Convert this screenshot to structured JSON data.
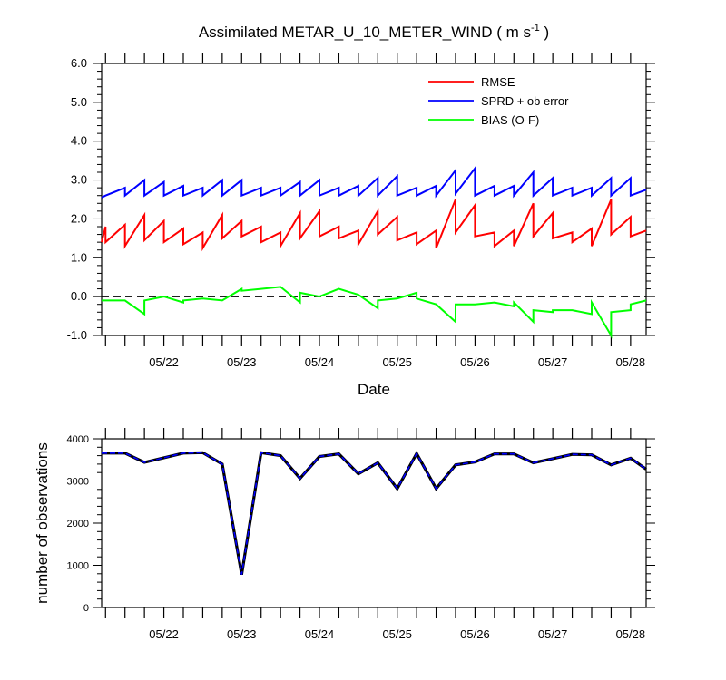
{
  "chart_data": [
    {
      "type": "line",
      "title_main": "Assimilated METAR_U_10_METER_WIND ( m s",
      "title_sup": "-1",
      "title_tail": " )",
      "xlabel": "Date",
      "ylabel": "",
      "xlim": [
        21.2,
        28.2
      ],
      "ylim": [
        -1.0,
        6.0
      ],
      "x_tick_labels": [
        "05/22",
        "05/23",
        "05/24",
        "05/25",
        "05/26",
        "05/27",
        "05/28"
      ],
      "x_tick_values": [
        22,
        23,
        24,
        25,
        26,
        27,
        28
      ],
      "y_tick_labels": [
        "6.0",
        "5.0",
        "4.0",
        "3.0",
        "2.0",
        "1.0",
        "0.0",
        "-1.0"
      ],
      "y_tick_values": [
        6,
        5,
        4,
        3,
        2,
        1,
        0,
        -1
      ],
      "zero_line": true,
      "legend_position": "top-right",
      "series": [
        {
          "name": "RMSE",
          "color": "#ff0000",
          "cycles": [
            {
              "start": 21.2,
              "end": 21.25,
              "v0": 1.4,
              "v1": 1.8
            },
            {
              "start": 21.25,
              "end": 21.5,
              "v0": 1.4,
              "v1": 1.85
            },
            {
              "start": 21.5,
              "end": 21.75,
              "v0": 1.3,
              "v1": 2.1
            },
            {
              "start": 21.75,
              "end": 22.0,
              "v0": 1.45,
              "v1": 1.95
            },
            {
              "start": 22.0,
              "end": 22.25,
              "v0": 1.4,
              "v1": 1.75
            },
            {
              "start": 22.25,
              "end": 22.5,
              "v0": 1.35,
              "v1": 1.65
            },
            {
              "start": 22.5,
              "end": 22.75,
              "v0": 1.25,
              "v1": 2.1
            },
            {
              "start": 22.75,
              "end": 23.0,
              "v0": 1.5,
              "v1": 1.95
            },
            {
              "start": 23.0,
              "end": 23.25,
              "v0": 1.55,
              "v1": 1.8
            },
            {
              "start": 23.25,
              "end": 23.5,
              "v0": 1.4,
              "v1": 1.65
            },
            {
              "start": 23.5,
              "end": 23.75,
              "v0": 1.3,
              "v1": 2.15
            },
            {
              "start": 23.75,
              "end": 24.0,
              "v0": 1.5,
              "v1": 2.2
            },
            {
              "start": 24.0,
              "end": 24.25,
              "v0": 1.55,
              "v1": 1.8
            },
            {
              "start": 24.25,
              "end": 24.5,
              "v0": 1.5,
              "v1": 1.7
            },
            {
              "start": 24.5,
              "end": 24.75,
              "v0": 1.35,
              "v1": 2.2
            },
            {
              "start": 24.75,
              "end": 25.0,
              "v0": 1.6,
              "v1": 2.05
            },
            {
              "start": 25.0,
              "end": 25.25,
              "v0": 1.45,
              "v1": 1.65
            },
            {
              "start": 25.25,
              "end": 25.5,
              "v0": 1.35,
              "v1": 1.7
            },
            {
              "start": 25.5,
              "end": 25.75,
              "v0": 1.25,
              "v1": 2.5
            },
            {
              "start": 25.75,
              "end": 26.0,
              "v0": 1.65,
              "v1": 2.35
            },
            {
              "start": 26.0,
              "end": 26.25,
              "v0": 1.55,
              "v1": 1.65
            },
            {
              "start": 26.25,
              "end": 26.5,
              "v0": 1.3,
              "v1": 1.7
            },
            {
              "start": 26.5,
              "end": 26.75,
              "v0": 1.3,
              "v1": 2.4
            },
            {
              "start": 26.75,
              "end": 27.0,
              "v0": 1.55,
              "v1": 2.15
            },
            {
              "start": 27.0,
              "end": 27.25,
              "v0": 1.5,
              "v1": 1.65
            },
            {
              "start": 27.25,
              "end": 27.5,
              "v0": 1.4,
              "v1": 1.75
            },
            {
              "start": 27.5,
              "end": 27.75,
              "v0": 1.3,
              "v1": 2.5
            },
            {
              "start": 27.75,
              "end": 28.0,
              "v0": 1.6,
              "v1": 2.05
            },
            {
              "start": 28.0,
              "end": 28.2,
              "v0": 1.55,
              "v1": 1.7
            }
          ]
        },
        {
          "name": "SPRD + ob error",
          "color": "#0000ff",
          "cycles": [
            {
              "start": 21.2,
              "end": 21.25,
              "v0": 2.55,
              "v1": 2.6
            },
            {
              "start": 21.25,
              "end": 21.5,
              "v0": 2.6,
              "v1": 2.8
            },
            {
              "start": 21.5,
              "end": 21.75,
              "v0": 2.6,
              "v1": 3.0
            },
            {
              "start": 21.75,
              "end": 22.0,
              "v0": 2.6,
              "v1": 2.95
            },
            {
              "start": 22.0,
              "end": 22.25,
              "v0": 2.6,
              "v1": 2.85
            },
            {
              "start": 22.25,
              "end": 22.5,
              "v0": 2.6,
              "v1": 2.8
            },
            {
              "start": 22.5,
              "end": 22.75,
              "v0": 2.6,
              "v1": 3.0
            },
            {
              "start": 22.75,
              "end": 23.0,
              "v0": 2.6,
              "v1": 3.0
            },
            {
              "start": 23.0,
              "end": 23.25,
              "v0": 2.6,
              "v1": 2.8
            },
            {
              "start": 23.25,
              "end": 23.5,
              "v0": 2.6,
              "v1": 2.8
            },
            {
              "start": 23.5,
              "end": 23.75,
              "v0": 2.6,
              "v1": 2.95
            },
            {
              "start": 23.75,
              "end": 24.0,
              "v0": 2.6,
              "v1": 3.0
            },
            {
              "start": 24.0,
              "end": 24.25,
              "v0": 2.6,
              "v1": 2.8
            },
            {
              "start": 24.25,
              "end": 24.5,
              "v0": 2.6,
              "v1": 2.85
            },
            {
              "start": 24.5,
              "end": 24.75,
              "v0": 2.6,
              "v1": 3.05
            },
            {
              "start": 24.75,
              "end": 25.0,
              "v0": 2.6,
              "v1": 3.1
            },
            {
              "start": 25.0,
              "end": 25.25,
              "v0": 2.6,
              "v1": 2.8
            },
            {
              "start": 25.25,
              "end": 25.5,
              "v0": 2.6,
              "v1": 2.85
            },
            {
              "start": 25.5,
              "end": 25.75,
              "v0": 2.6,
              "v1": 3.25
            },
            {
              "start": 25.75,
              "end": 26.0,
              "v0": 2.65,
              "v1": 3.3
            },
            {
              "start": 26.0,
              "end": 26.25,
              "v0": 2.6,
              "v1": 2.85
            },
            {
              "start": 26.25,
              "end": 26.5,
              "v0": 2.6,
              "v1": 2.85
            },
            {
              "start": 26.5,
              "end": 26.75,
              "v0": 2.6,
              "v1": 3.2
            },
            {
              "start": 26.75,
              "end": 27.0,
              "v0": 2.6,
              "v1": 3.05
            },
            {
              "start": 27.0,
              "end": 27.25,
              "v0": 2.6,
              "v1": 2.8
            },
            {
              "start": 27.25,
              "end": 27.5,
              "v0": 2.6,
              "v1": 2.8
            },
            {
              "start": 27.5,
              "end": 27.75,
              "v0": 2.6,
              "v1": 3.05
            },
            {
              "start": 27.75,
              "end": 28.0,
              "v0": 2.6,
              "v1": 3.05
            },
            {
              "start": 28.0,
              "end": 28.2,
              "v0": 2.6,
              "v1": 2.75
            }
          ]
        },
        {
          "name": "BIAS (O-F)",
          "color": "#00ff00",
          "cycles": [
            {
              "start": 21.2,
              "end": 21.25,
              "v0": -0.1,
              "v1": -0.1
            },
            {
              "start": 21.25,
              "end": 21.5,
              "v0": -0.1,
              "v1": -0.1
            },
            {
              "start": 21.5,
              "end": 21.75,
              "v0": -0.1,
              "v1": -0.45
            },
            {
              "start": 21.75,
              "end": 22.0,
              "v0": -0.1,
              "v1": 0.0
            },
            {
              "start": 22.0,
              "end": 22.25,
              "v0": 0.0,
              "v1": -0.15
            },
            {
              "start": 22.25,
              "end": 22.5,
              "v0": -0.1,
              "v1": -0.05
            },
            {
              "start": 22.5,
              "end": 22.75,
              "v0": -0.05,
              "v1": -0.1
            },
            {
              "start": 22.75,
              "end": 23.0,
              "v0": -0.1,
              "v1": 0.2
            },
            {
              "start": 23.0,
              "end": 23.25,
              "v0": 0.15,
              "v1": 0.2
            },
            {
              "start": 23.25,
              "end": 23.5,
              "v0": 0.2,
              "v1": 0.25
            },
            {
              "start": 23.5,
              "end": 23.75,
              "v0": 0.25,
              "v1": -0.15
            },
            {
              "start": 23.75,
              "end": 24.0,
              "v0": 0.1,
              "v1": 0.0
            },
            {
              "start": 24.0,
              "end": 24.25,
              "v0": 0.0,
              "v1": 0.2
            },
            {
              "start": 24.25,
              "end": 24.5,
              "v0": 0.2,
              "v1": 0.05
            },
            {
              "start": 24.5,
              "end": 24.75,
              "v0": 0.05,
              "v1": -0.3
            },
            {
              "start": 24.75,
              "end": 25.0,
              "v0": -0.1,
              "v1": -0.05
            },
            {
              "start": 25.0,
              "end": 25.25,
              "v0": -0.05,
              "v1": 0.1
            },
            {
              "start": 25.25,
              "end": 25.5,
              "v0": -0.05,
              "v1": -0.2
            },
            {
              "start": 25.5,
              "end": 25.75,
              "v0": -0.2,
              "v1": -0.65
            },
            {
              "start": 25.75,
              "end": 26.0,
              "v0": -0.2,
              "v1": -0.2
            },
            {
              "start": 26.0,
              "end": 26.25,
              "v0": -0.2,
              "v1": -0.15
            },
            {
              "start": 26.25,
              "end": 26.5,
              "v0": -0.15,
              "v1": -0.25
            },
            {
              "start": 26.5,
              "end": 26.75,
              "v0": -0.15,
              "v1": -0.65
            },
            {
              "start": 26.75,
              "end": 27.0,
              "v0": -0.35,
              "v1": -0.4
            },
            {
              "start": 27.0,
              "end": 27.25,
              "v0": -0.35,
              "v1": -0.35
            },
            {
              "start": 27.25,
              "end": 27.5,
              "v0": -0.35,
              "v1": -0.45
            },
            {
              "start": 27.5,
              "end": 27.75,
              "v0": -0.15,
              "v1": -1.0
            },
            {
              "start": 27.75,
              "end": 28.0,
              "v0": -0.4,
              "v1": -0.35
            },
            {
              "start": 28.0,
              "end": 28.2,
              "v0": -0.2,
              "v1": -0.1
            }
          ]
        }
      ]
    },
    {
      "type": "line",
      "ylabel": "number of observations",
      "xlabel": "",
      "xlim": [
        21.2,
        28.2
      ],
      "ylim": [
        0,
        4000
      ],
      "x_tick_labels": [
        "05/22",
        "05/23",
        "05/24",
        "05/25",
        "05/26",
        "05/27",
        "05/28"
      ],
      "x_tick_values": [
        22,
        23,
        24,
        25,
        26,
        27,
        28
      ],
      "y_tick_labels": [
        "4000",
        "3000",
        "2000",
        "1000",
        "0"
      ],
      "y_tick_values": [
        4000,
        3000,
        2000,
        1000,
        0
      ],
      "series": [
        {
          "name": "observations",
          "color": "#0000ff",
          "x": [
            21.2,
            21.5,
            21.75,
            22.0,
            22.25,
            22.5,
            22.75,
            23.0,
            23.25,
            23.5,
            23.75,
            24.0,
            24.25,
            24.5,
            24.75,
            25.0,
            25.25,
            25.5,
            25.75,
            26.0,
            26.25,
            26.5,
            26.75,
            27.0,
            27.25,
            27.5,
            27.75,
            28.0,
            28.2
          ],
          "values": [
            3660,
            3660,
            3440,
            3550,
            3660,
            3670,
            3400,
            780,
            3670,
            3600,
            3060,
            3580,
            3640,
            3170,
            3430,
            2820,
            3650,
            2820,
            3380,
            3450,
            3640,
            3640,
            3430,
            3530,
            3630,
            3620,
            3380,
            3540,
            3280
          ]
        }
      ]
    }
  ]
}
